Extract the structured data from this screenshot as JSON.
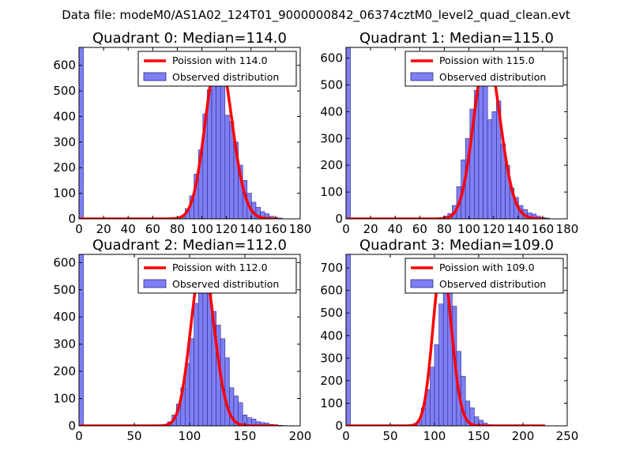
{
  "figure_title": "Data file: modeM0/AS1A02_124T01_9000000842_06374cztM0_level2_quad_clean.evt",
  "colors": {
    "bars": "#7f7ff5",
    "bar_edge": "#2a2a8c",
    "fit_line": "#ff0000",
    "axes": "#000000"
  },
  "chart_data": [
    {
      "type": "bar",
      "title": "Quadrant 0: Median=114.0",
      "xlim": [
        0,
        180
      ],
      "ylim": [
        0,
        670
      ],
      "xticks": [
        0,
        20,
        40,
        60,
        80,
        100,
        120,
        140,
        160,
        180
      ],
      "yticks": [
        0,
        100,
        200,
        300,
        400,
        500,
        600
      ],
      "legend": {
        "line_label": "Poission with 114.0",
        "bar_label": "Observed distribution",
        "placement": "upper right"
      },
      "bin_width": 3.6,
      "hist_x": [
        0,
        82.8,
        86.4,
        90.0,
        93.6,
        97.2,
        100.8,
        104.4,
        108.0,
        111.6,
        115.2,
        118.8,
        122.4,
        126.0,
        129.6,
        133.2,
        136.8,
        140.4,
        144.0,
        147.6,
        151.2,
        154.8,
        158.4,
        162.0
      ],
      "hist_counts": [
        670,
        12,
        40,
        90,
        175,
        270,
        410,
        505,
        645,
        650,
        520,
        405,
        380,
        300,
        210,
        150,
        100,
        65,
        45,
        28,
        20,
        10,
        5,
        3
      ],
      "poisson_mean": 114.0,
      "poisson_peak": 640
    },
    {
      "type": "bar",
      "title": "Quadrant 1: Median=115.0",
      "xlim": [
        0,
        180
      ],
      "ylim": [
        0,
        640
      ],
      "xticks": [
        0,
        20,
        40,
        60,
        80,
        100,
        120,
        140,
        160,
        180
      ],
      "yticks": [
        0,
        100,
        200,
        300,
        400,
        500,
        600
      ],
      "legend": {
        "line_label": "Poission with 115.0",
        "bar_label": "Observed distribution",
        "placement": "upper right"
      },
      "bin_width": 3.6,
      "hist_x": [
        0,
        75.6,
        79.2,
        82.8,
        86.4,
        90.0,
        93.6,
        97.2,
        100.8,
        104.4,
        108.0,
        111.6,
        115.2,
        118.8,
        122.4,
        126.0,
        129.6,
        133.2,
        136.8,
        140.4,
        144.0,
        147.6,
        151.2,
        154.8,
        158.4,
        162.0
      ],
      "hist_counts": [
        640,
        5,
        10,
        20,
        50,
        120,
        220,
        300,
        410,
        480,
        600,
        520,
        370,
        400,
        440,
        280,
        200,
        115,
        80,
        50,
        35,
        22,
        18,
        10,
        5,
        3
      ],
      "poisson_mean": 115.0,
      "poisson_peak": 615
    },
    {
      "type": "bar",
      "title": "Quadrant 2: Median=112.0",
      "xlim": [
        0,
        200
      ],
      "ylim": [
        0,
        630
      ],
      "xticks": [
        0,
        50,
        100,
        150,
        200
      ],
      "yticks": [
        0,
        100,
        200,
        300,
        400,
        500,
        600
      ],
      "legend": {
        "line_label": "Poission with 112.0",
        "bar_label": "Observed distribution",
        "placement": "upper right"
      },
      "bin_width": 4.0,
      "hist_x": [
        0,
        80,
        84,
        88,
        92,
        96,
        100,
        104,
        108,
        112,
        116,
        120,
        124,
        128,
        132,
        136,
        140,
        144,
        148,
        152,
        156,
        160,
        164,
        168,
        172,
        176,
        180,
        184
      ],
      "hist_counts": [
        630,
        15,
        40,
        80,
        140,
        230,
        320,
        450,
        520,
        490,
        510,
        420,
        370,
        320,
        250,
        140,
        110,
        85,
        40,
        30,
        25,
        15,
        12,
        10,
        5,
        3,
        2,
        1
      ],
      "poisson_mean": 112.0,
      "poisson_peak": 600
    },
    {
      "type": "bar",
      "title": "Quadrant 3: Median=109.0",
      "xlim": [
        0,
        250
      ],
      "ylim": [
        0,
        760
      ],
      "xticks": [
        0,
        50,
        100,
        150,
        200,
        250
      ],
      "yticks": [
        0,
        100,
        200,
        300,
        400,
        500,
        600,
        700
      ],
      "legend": {
        "line_label": "Poission with 109.0",
        "bar_label": "Observed distribution",
        "placement": "upper right"
      },
      "bin_width": 5.0,
      "hist_x": [
        0,
        75,
        80,
        85,
        90,
        95,
        100,
        105,
        110,
        115,
        120,
        125,
        130,
        135,
        140,
        145,
        150,
        155,
        160,
        165,
        170,
        175
      ],
      "hist_counts": [
        760,
        5,
        20,
        80,
        160,
        260,
        360,
        540,
        720,
        650,
        530,
        330,
        220,
        110,
        80,
        40,
        25,
        12,
        5,
        3,
        2,
        1
      ],
      "poisson_mean": 109.0,
      "poisson_peak": 720
    }
  ]
}
